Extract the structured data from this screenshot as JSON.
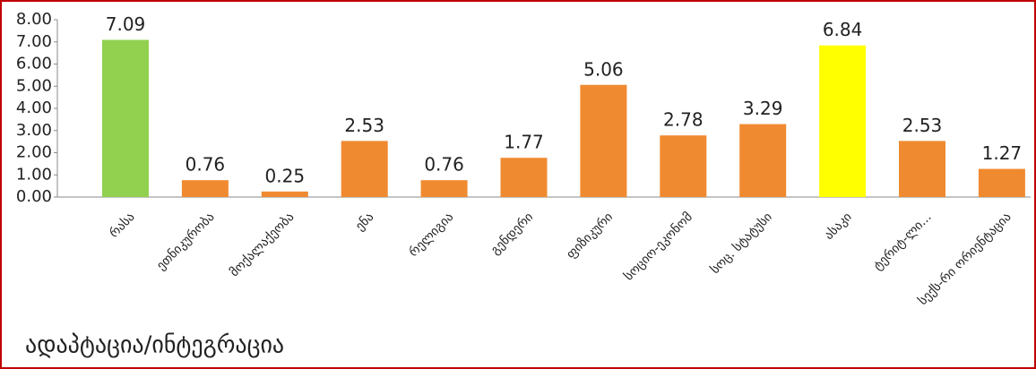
{
  "chart_data": {
    "type": "bar",
    "title": "ადაპტაცია/ინტეგრაცია",
    "categories": [
      "რასა",
      "ეთნიკურობა",
      "მოქალაქეობა",
      "ენა",
      "რელიგია",
      "გენდერი",
      "ფიზიკური",
      "სოციო-ეკონომ",
      "სოც. სტატუსი",
      "ასაკი",
      "ტერიტ-ლი...",
      "სექს-რი ორიენტაცია"
    ],
    "values": [
      7.09,
      0.76,
      0.25,
      2.53,
      0.76,
      1.77,
      5.06,
      2.78,
      3.29,
      6.84,
      2.53,
      1.27
    ],
    "colors": [
      "#92d050",
      "#f08a30",
      "#f08a30",
      "#f08a30",
      "#f08a30",
      "#f08a30",
      "#f08a30",
      "#f08a30",
      "#f08a30",
      "#ffff00",
      "#f08a30",
      "#f08a30"
    ],
    "ylim": [
      0,
      8
    ],
    "yticks": [
      {
        "value": 0,
        "label": "0.00"
      },
      {
        "value": 1,
        "label": "1.00"
      },
      {
        "value": 2,
        "label": "2.00"
      },
      {
        "value": 3,
        "label": "3.00"
      },
      {
        "value": 4,
        "label": "4.00"
      },
      {
        "value": 5,
        "label": "5.00"
      },
      {
        "value": 6,
        "label": "6.00"
      },
      {
        "value": 7,
        "label": "7.00"
      },
      {
        "value": 8,
        "label": "8.00"
      }
    ]
  }
}
